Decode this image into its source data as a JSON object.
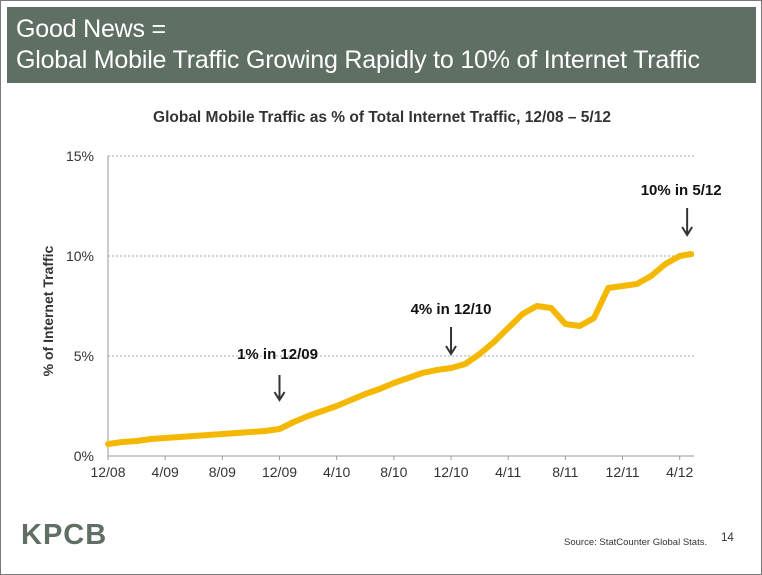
{
  "banner": {
    "line1": "Good News =",
    "line2": "Global Mobile Traffic Growing Rapidly to 10% of Internet Traffic",
    "background": "#5f6f63"
  },
  "chart_data": {
    "type": "line",
    "title": "Global Mobile Traffic as % of Total Internet Traffic, 12/08 – 5/12",
    "xlabel": "",
    "ylabel": "% of Internet Traffic",
    "x_ticks": [
      "12/08",
      "4/09",
      "8/09",
      "12/09",
      "4/10",
      "8/10",
      "12/10",
      "4/11",
      "8/11",
      "12/11",
      "4/12"
    ],
    "y_ticks": [
      "0%",
      "5%",
      "10%",
      "15%"
    ],
    "ylim": [
      0,
      15
    ],
    "x_unit": "months since 12/08",
    "xlim": [
      0,
      41
    ],
    "grid": "horizontal dashed",
    "series": [
      {
        "name": "",
        "color": "#f5b800",
        "x": [
          0,
          1,
          2,
          3,
          4,
          5,
          6,
          7,
          8,
          9,
          10,
          11,
          12,
          13,
          14,
          15,
          16,
          17,
          18,
          19,
          20,
          21,
          22,
          23,
          24,
          25,
          26,
          27,
          28,
          29,
          30,
          31,
          32,
          33,
          34,
          35,
          36,
          37,
          38,
          39,
          40,
          40.8
        ],
        "values": [
          0.6,
          0.7,
          0.75,
          0.85,
          0.9,
          0.95,
          1.0,
          1.05,
          1.1,
          1.15,
          1.2,
          1.25,
          1.35,
          1.7,
          2.0,
          2.25,
          2.5,
          2.8,
          3.1,
          3.35,
          3.65,
          3.9,
          4.15,
          4.3,
          4.4,
          4.6,
          5.1,
          5.7,
          6.4,
          7.1,
          7.5,
          7.4,
          6.6,
          6.5,
          6.9,
          8.4,
          8.5,
          8.6,
          9.0,
          9.6,
          10.0,
          10.1
        ]
      }
    ],
    "annotations": [
      {
        "label": "1% in 12/09",
        "x": 12,
        "y": 1.2
      },
      {
        "label": "4% in 12/10",
        "x": 24,
        "y": 4.4
      },
      {
        "label": "10% in 5/12",
        "x": 40.8,
        "y": 10.1
      }
    ]
  },
  "footer": {
    "logo": "KPCB",
    "source": "Source: StatCounter Global Stats.",
    "page": "14"
  }
}
